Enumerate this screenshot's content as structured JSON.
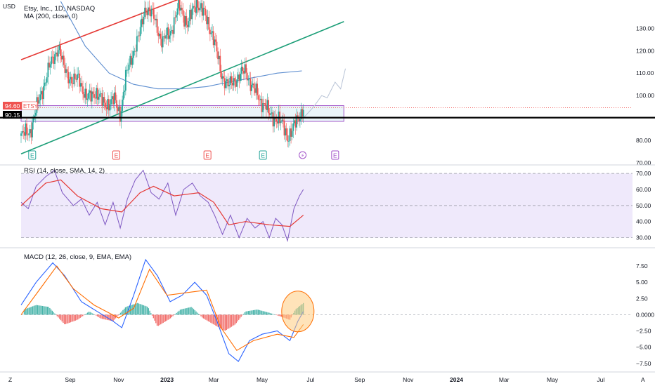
{
  "colors": {
    "up": "#26a69a",
    "down": "#ef5350",
    "ma": "#5b8ccf",
    "trend_red": "#e53935",
    "trend_green": "#1b9e77",
    "box": "#a050c8",
    "box_fill": "#e3f2f7",
    "rsi_line": "#7e57c2",
    "rsi_ma": "#e53935",
    "rsi_band": "#efe9fb",
    "macd": "#2962ff",
    "signal": "#ff6d00",
    "highlight": "#ffcc80",
    "price_label": "#ef5350"
  },
  "axis_currency": "USD",
  "corner_left": "Z",
  "corner_right": "A",
  "price_label": {
    "value": "94.60",
    "ticker": "ETSY"
  },
  "support_label": {
    "value": "90.15"
  },
  "chart_data": [
    {
      "type": "candlestick",
      "title": "Etsy, Inc., 1D, NASDAQ",
      "indicator": "MA (200, close, 0)",
      "ylim": [
        70,
        142
      ],
      "yticks": [
        "130.00",
        "120.00",
        "110.00",
        "100.00",
        "80.00",
        "70.00"
      ],
      "ytick_values": [
        130,
        120,
        110,
        100,
        80,
        70
      ],
      "x_date_range": [
        "2022-07-01",
        "2024-08-10"
      ],
      "x_tick_labels": [
        "Sep",
        "Nov",
        "2023",
        "Mar",
        "May",
        "Jul",
        "Sep",
        "Nov",
        "2024",
        "Mar",
        "May",
        "Jul"
      ],
      "x_tick_dates": [
        "2022-09-01",
        "2022-11-01",
        "2023-01-01",
        "2023-03-01",
        "2023-05-01",
        "2023-07-01",
        "2023-09-01",
        "2023-11-01",
        "2024-01-01",
        "2024-03-01",
        "2024-05-01",
        "2024-07-01"
      ],
      "price_path": [
        [
          "2022-07-01",
          82
        ],
        [
          "2022-07-12",
          84
        ],
        [
          "2022-07-22",
          96
        ],
        [
          "2022-08-05",
          112
        ],
        [
          "2022-08-17",
          122
        ],
        [
          "2022-08-24",
          112
        ],
        [
          "2022-09-05",
          106
        ],
        [
          "2022-09-12",
          108
        ],
        [
          "2022-09-22",
          98
        ],
        [
          "2022-10-03",
          102
        ],
        [
          "2022-10-13",
          96
        ],
        [
          "2022-10-26",
          98
        ],
        [
          "2022-11-03",
          92
        ],
        [
          "2022-11-10",
          108
        ],
        [
          "2022-11-18",
          118
        ],
        [
          "2022-11-28",
          128
        ],
        [
          "2022-12-05",
          140
        ],
        [
          "2022-12-15",
          135
        ],
        [
          "2022-12-26",
          124
        ],
        [
          "2023-01-05",
          128
        ],
        [
          "2023-01-16",
          140
        ],
        [
          "2023-01-27",
          132
        ],
        [
          "2023-02-08",
          142
        ],
        [
          "2023-02-17",
          136
        ],
        [
          "2023-02-27",
          128
        ],
        [
          "2023-03-03",
          122
        ],
        [
          "2023-03-10",
          110
        ],
        [
          "2023-03-20",
          104
        ],
        [
          "2023-03-30",
          108
        ],
        [
          "2023-04-10",
          111
        ],
        [
          "2023-04-20",
          103
        ],
        [
          "2023-04-28",
          98
        ],
        [
          "2023-05-05",
          96
        ],
        [
          "2023-05-10",
          91
        ],
        [
          "2023-05-20",
          90
        ],
        [
          "2023-05-28",
          86
        ],
        [
          "2023-06-02",
          82
        ],
        [
          "2023-06-08",
          84
        ],
        [
          "2023-06-15",
          90
        ],
        [
          "2023-06-22",
          94.6
        ]
      ],
      "ma200_path": [
        [
          "2022-08-20",
          142
        ],
        [
          "2022-09-20",
          122
        ],
        [
          "2022-10-20",
          110
        ],
        [
          "2022-11-20",
          105
        ],
        [
          "2022-12-20",
          103
        ],
        [
          "2023-01-20",
          103
        ],
        [
          "2023-02-20",
          104
        ],
        [
          "2023-03-20",
          106
        ],
        [
          "2023-04-20",
          108
        ],
        [
          "2023-05-20",
          110
        ],
        [
          "2023-06-20",
          111
        ]
      ],
      "projection_path": [
        [
          "2023-06-22",
          90
        ],
        [
          "2023-07-05",
          95
        ],
        [
          "2023-07-15",
          100
        ],
        [
          "2023-07-22",
          99
        ],
        [
          "2023-08-01",
          106
        ],
        [
          "2023-08-08",
          103
        ],
        [
          "2023-08-14",
          112
        ]
      ],
      "trendlines": [
        {
          "color": "trend_red",
          "from": [
            "2022-07-01",
            116
          ],
          "to": [
            "2023-01-31",
            145
          ]
        },
        {
          "color": "trend_green",
          "from": [
            "2022-07-01",
            74
          ],
          "to": [
            "2023-08-12",
            133
          ]
        }
      ],
      "zone": {
        "from": "2022-07-01",
        "to": "2023-08-12",
        "low": 88.5,
        "high": 95.5
      },
      "support_line": 90.15,
      "events": [
        {
          "label": "E",
          "date": "2022-07-15",
          "color": "up"
        },
        {
          "label": "E",
          "date": "2022-10-29",
          "color": "down"
        },
        {
          "label": "E",
          "date": "2023-02-21",
          "color": "down"
        },
        {
          "label": "E",
          "date": "2023-05-02",
          "color": "up"
        },
        {
          "label": "⚡",
          "date": "2023-06-21",
          "color": "box"
        },
        {
          "label": "E",
          "date": "2023-08-01",
          "color": "box"
        }
      ]
    },
    {
      "type": "line",
      "title": "RSI (14, close, SMA, 14, 2)",
      "ylim": [
        25,
        74
      ],
      "yticks": [
        "70.00",
        "60.00",
        "50.00",
        "40.00",
        "30.00"
      ],
      "ytick_values": [
        70,
        60,
        50,
        40,
        30
      ],
      "bands": [
        70,
        50,
        30
      ],
      "rsi_path": [
        [
          "2022-07-01",
          52
        ],
        [
          "2022-07-10",
          48
        ],
        [
          "2022-07-20",
          62
        ],
        [
          "2022-08-01",
          68
        ],
        [
          "2022-08-12",
          72
        ],
        [
          "2022-08-22",
          58
        ],
        [
          "2022-09-05",
          50
        ],
        [
          "2022-09-15",
          54
        ],
        [
          "2022-09-25",
          44
        ],
        [
          "2022-10-05",
          52
        ],
        [
          "2022-10-15",
          38
        ],
        [
          "2022-10-25",
          52
        ],
        [
          "2022-11-03",
          36
        ],
        [
          "2022-11-12",
          54
        ],
        [
          "2022-11-22",
          66
        ],
        [
          "2022-12-02",
          72
        ],
        [
          "2022-12-12",
          58
        ],
        [
          "2022-12-22",
          54
        ],
        [
          "2023-01-02",
          64
        ],
        [
          "2023-01-12",
          44
        ],
        [
          "2023-01-22",
          60
        ],
        [
          "2023-02-02",
          64
        ],
        [
          "2023-02-12",
          56
        ],
        [
          "2023-02-22",
          52
        ],
        [
          "2023-03-02",
          44
        ],
        [
          "2023-03-12",
          32
        ],
        [
          "2023-03-22",
          44
        ],
        [
          "2023-04-02",
          30
        ],
        [
          "2023-04-12",
          42
        ],
        [
          "2023-04-22",
          36
        ],
        [
          "2023-05-02",
          40
        ],
        [
          "2023-05-10",
          30
        ],
        [
          "2023-05-18",
          42
        ],
        [
          "2023-05-26",
          38
        ],
        [
          "2023-06-02",
          28
        ],
        [
          "2023-06-10",
          48
        ],
        [
          "2023-06-17",
          56
        ],
        [
          "2023-06-22",
          60
        ]
      ],
      "rsi_ma_path": [
        [
          "2022-07-01",
          50
        ],
        [
          "2022-08-01",
          64
        ],
        [
          "2022-08-20",
          66
        ],
        [
          "2022-09-10",
          56
        ],
        [
          "2022-10-10",
          48
        ],
        [
          "2022-11-05",
          46
        ],
        [
          "2022-11-28",
          58
        ],
        [
          "2022-12-15",
          62
        ],
        [
          "2023-01-10",
          56
        ],
        [
          "2023-02-10",
          58
        ],
        [
          "2023-03-01",
          52
        ],
        [
          "2023-03-20",
          38
        ],
        [
          "2023-04-10",
          40
        ],
        [
          "2023-05-10",
          38
        ],
        [
          "2023-06-05",
          37
        ],
        [
          "2023-06-22",
          44
        ]
      ]
    },
    {
      "type": "bar",
      "title": "MACD (12, 26, close, 9, EMA, EMA)",
      "ylim": [
        -8.5,
        10
      ],
      "yticks": [
        "7.50",
        "5.00",
        "2.50",
        "0.0000",
        "−2.50",
        "−5.00",
        "−7.50"
      ],
      "ytick_values": [
        7.5,
        5,
        2.5,
        0,
        -2.5,
        -5,
        -7.5
      ],
      "macd_path": [
        [
          "2022-07-01",
          1.5
        ],
        [
          "2022-07-20",
          5
        ],
        [
          "2022-08-10",
          8
        ],
        [
          "2022-08-25",
          6
        ],
        [
          "2022-09-15",
          2
        ],
        [
          "2022-10-05",
          0.5
        ],
        [
          "2022-10-25",
          -1
        ],
        [
          "2022-11-05",
          -2
        ],
        [
          "2022-11-20",
          3
        ],
        [
          "2022-12-05",
          8.5
        ],
        [
          "2022-12-20",
          6
        ],
        [
          "2023-01-05",
          2
        ],
        [
          "2023-01-20",
          3
        ],
        [
          "2023-02-05",
          5
        ],
        [
          "2023-02-20",
          3
        ],
        [
          "2023-03-05",
          -1
        ],
        [
          "2023-03-20",
          -6
        ],
        [
          "2023-04-01",
          -7.2
        ],
        [
          "2023-04-15",
          -4
        ],
        [
          "2023-05-01",
          -3
        ],
        [
          "2023-05-20",
          -2.5
        ],
        [
          "2023-06-05",
          -4
        ],
        [
          "2023-06-15",
          -1
        ],
        [
          "2023-06-22",
          0.5
        ]
      ],
      "signal_path": [
        [
          "2022-07-01",
          0
        ],
        [
          "2022-07-25",
          4
        ],
        [
          "2022-08-15",
          7.5
        ],
        [
          "2022-09-05",
          4
        ],
        [
          "2022-10-01",
          1.5
        ],
        [
          "2022-11-01",
          -0.5
        ],
        [
          "2022-11-20",
          1
        ],
        [
          "2022-12-10",
          7
        ],
        [
          "2023-01-01",
          3
        ],
        [
          "2023-02-01",
          3.5
        ],
        [
          "2023-02-20",
          3.8
        ],
        [
          "2023-03-10",
          -2
        ],
        [
          "2023-03-30",
          -5.5
        ],
        [
          "2023-04-20",
          -4
        ],
        [
          "2023-05-20",
          -3
        ],
        [
          "2023-06-10",
          -3.5
        ],
        [
          "2023-06-22",
          -1.5
        ]
      ],
      "hist_bars": [
        [
          "2022-07-05",
          0.8
        ],
        [
          "2022-07-20",
          1.5
        ],
        [
          "2022-08-05",
          1.2
        ],
        [
          "2022-08-25",
          -1.5
        ],
        [
          "2022-09-10",
          -0.8
        ],
        [
          "2022-09-25",
          0.5
        ],
        [
          "2022-10-10",
          -0.6
        ],
        [
          "2022-10-25",
          -1
        ],
        [
          "2022-11-10",
          1.2
        ],
        [
          "2022-11-25",
          1.8
        ],
        [
          "2022-12-08",
          1.2
        ],
        [
          "2022-12-20",
          -1.8
        ],
        [
          "2023-01-05",
          -0.6
        ],
        [
          "2023-01-18",
          0.8
        ],
        [
          "2023-02-01",
          1.2
        ],
        [
          "2023-02-15",
          -0.5
        ],
        [
          "2023-03-01",
          -1.5
        ],
        [
          "2023-03-15",
          -2.5
        ],
        [
          "2023-03-28",
          -1.5
        ],
        [
          "2023-04-10",
          0.5
        ],
        [
          "2023-04-25",
          0.8
        ],
        [
          "2023-05-10",
          0.3
        ],
        [
          "2023-05-25",
          -0.3
        ],
        [
          "2023-06-05",
          -0.8
        ],
        [
          "2023-06-12",
          0.8
        ],
        [
          "2023-06-22",
          1.8
        ]
      ],
      "highlight": {
        "date": "2023-06-15",
        "value": 0.5
      }
    }
  ]
}
